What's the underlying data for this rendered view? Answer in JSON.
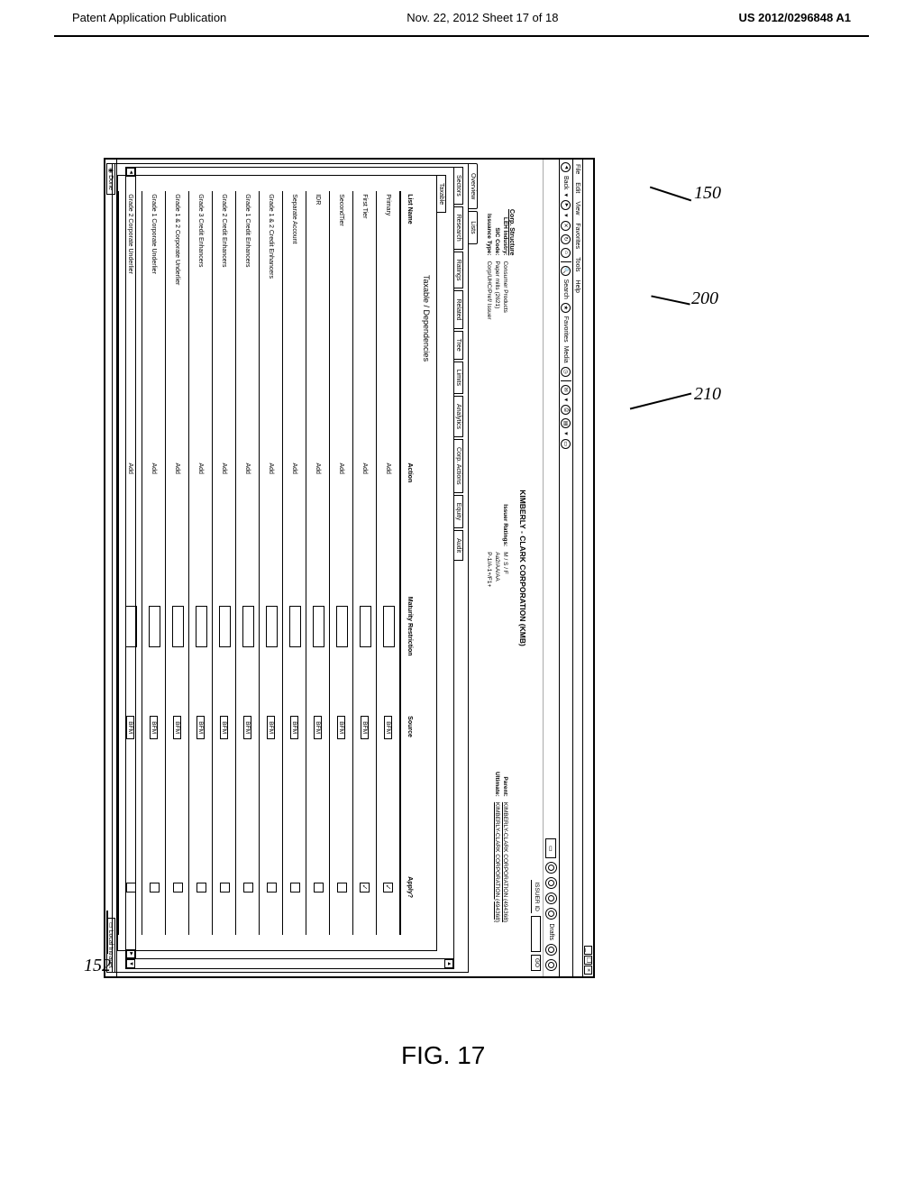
{
  "page_header": {
    "left": "Patent Application Publication",
    "center": "Nov. 22, 2012  Sheet 17 of 18",
    "right": "US 2012/0296848 A1"
  },
  "callouts": {
    "c150": "150",
    "c200": "200",
    "c210": "210",
    "c152": "152"
  },
  "figure_label": "FIG. 17",
  "window": {
    "menubar": [
      "File",
      "Edit",
      "View",
      "Favorites",
      "Tools",
      "Help"
    ],
    "toolbar": {
      "back": "Back",
      "search": "Search",
      "favorites": "Favorites",
      "media": "Media"
    },
    "winbtns": {
      "min": "_",
      "max": "❐",
      "close": "×"
    },
    "iconrow": {
      "drafts": "Drafts"
    },
    "issuer": {
      "label": "ISSUER ID",
      "go": "GO"
    },
    "corp": {
      "struct_link": "Corp. Structure",
      "title": "KIMBERLY - CLARK CORPORATION (KMB)",
      "left_labels": "LEH Industry:\nSIC Code:\nIssuance Type:",
      "left_values": "Consumer Products\nPaper mills (2621)\nCorp/UHC/Pref/ Issuer",
      "mid_label": "Issuer Ratings:",
      "mid_values": "M / S / F\nAa2/AA/AA\nP-1/A-1+/F1+",
      "right_labels": "Parent:\nUltimate:",
      "parent": "KIMBERLY-CLARK CORPORATION (494368)",
      "ultimate": "KIMBERLY-CLARK CORPORATION (494368)"
    },
    "main_tabs": [
      "Overview",
      "Lists"
    ],
    "sub_tabs": [
      "Sectors",
      "Research",
      "Ratings",
      "Related",
      "Tree",
      "Limits",
      "Analytics",
      "Corp. Actions",
      "Equity",
      "Audit"
    ],
    "inner_tab": "Taxable",
    "section_title": "Taxable / Dependencies",
    "table": {
      "columns": [
        "List Name",
        "Action",
        "Maturity Restriction",
        "Source",
        "Apply?"
      ],
      "rows": [
        {
          "name": "Primary",
          "action": "Add",
          "source": "BFM",
          "apply": true
        },
        {
          "name": "First Tier",
          "action": "Add",
          "source": "BFM",
          "apply": true
        },
        {
          "name": "SecondTier",
          "action": "Add",
          "source": "BFM",
          "apply": false
        },
        {
          "name": "IDR",
          "action": "Add",
          "source": "BFM",
          "apply": false
        },
        {
          "name": "Separate Account",
          "action": "Add",
          "source": "BFM",
          "apply": false
        },
        {
          "name": "Grade 1 & 2 Credit Enhancers",
          "action": "Add",
          "source": "BFM",
          "apply": false
        },
        {
          "name": "Grade 1 Credit Enhancers",
          "action": "Add",
          "source": "BFM",
          "apply": false
        },
        {
          "name": "Grade 2 Credit Enhancers",
          "action": "Add",
          "source": "BFM",
          "apply": false
        },
        {
          "name": "Grade 3 Credit Enhancers",
          "action": "Add",
          "source": "BFM",
          "apply": false
        },
        {
          "name": "Grade 1 & 2 Corporate Underlier",
          "action": "Add",
          "source": "BFM",
          "apply": false
        },
        {
          "name": "Grade 1 Corporate Underlier",
          "action": "Add",
          "source": "BFM",
          "apply": false
        },
        {
          "name": "Grade 2 Corporate Underlier",
          "action": "Add",
          "source": "BFM",
          "apply": false
        }
      ]
    },
    "statusbar": {
      "left": "Done",
      "right": "Local Intranet"
    }
  }
}
